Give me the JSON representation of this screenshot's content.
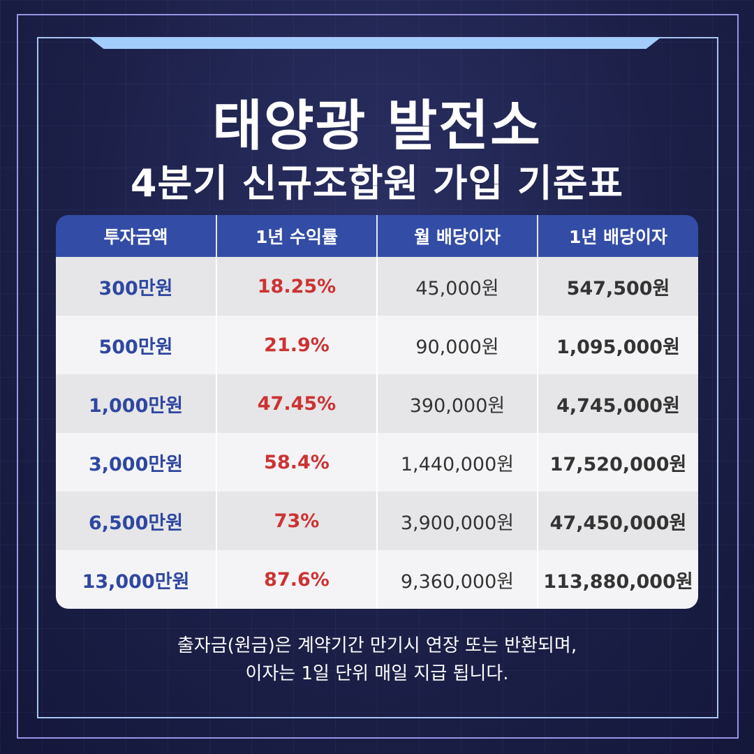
{
  "title": {
    "line1": "태양광 발전소",
    "line2": "4분기 신규조합원 가입 기준표"
  },
  "table": {
    "headers": [
      "투자금액",
      "1년 수익률",
      "월 배당이자",
      "1년 배당이자"
    ],
    "rows": [
      [
        "300만원",
        "18.25%",
        "45,000원",
        "547,500원"
      ],
      [
        "500만원",
        "21.9%",
        "90,000원",
        "1,095,000원"
      ],
      [
        "1,000만원",
        "47.45%",
        "390,000원",
        "4,745,000원"
      ],
      [
        "3,000만원",
        "58.4%",
        "1,440,000원",
        "17,520,000원"
      ],
      [
        "6,500만원",
        "73%",
        "3,900,000원",
        "47,450,000원"
      ],
      [
        "13,000만원",
        "87.6%",
        "9,360,000원",
        "113,880,000원"
      ]
    ]
  },
  "footer": {
    "line1": "출자금(원금)은 계약기간 만기시 연장 또는 반환되며,",
    "line2": "이자는 1일 단위 매일 지급 됩니다."
  },
  "colors": {
    "header": "#334ca6",
    "amount": "#2f47a0",
    "rate": "#cc3333",
    "background": "#1c2048"
  }
}
